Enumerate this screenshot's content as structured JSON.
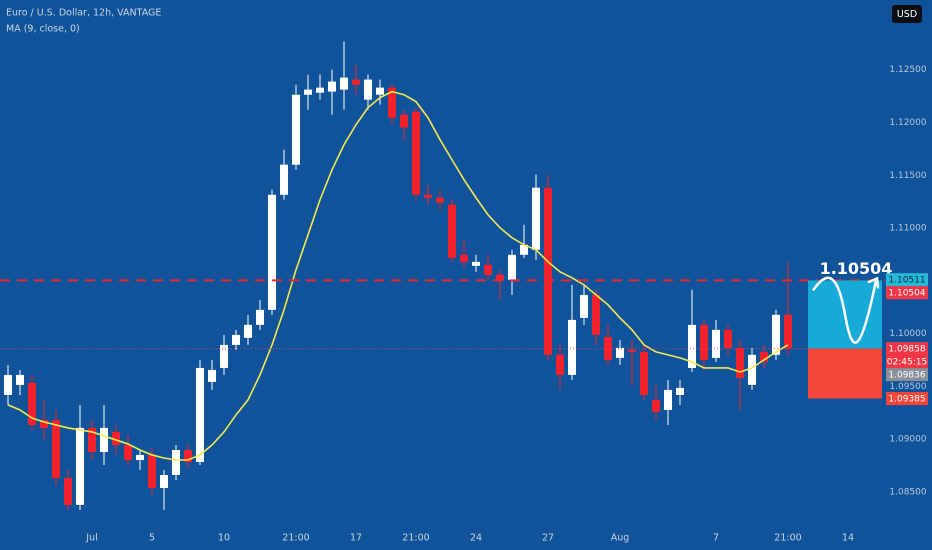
{
  "chart_data": {
    "type": "candlestick",
    "currency": "USD",
    "categories": [
      null,
      null,
      null,
      null,
      null,
      null,
      null,
      "Jul",
      null,
      null,
      null,
      null,
      "5",
      null,
      null,
      null,
      null,
      null,
      "10",
      null,
      null,
      null,
      null,
      null,
      "21:00",
      null,
      null,
      null,
      null,
      "17",
      null,
      null,
      null,
      null,
      "21:00",
      null,
      null,
      null,
      null,
      "24",
      null,
      null,
      null,
      null,
      null,
      "27",
      null,
      null,
      null,
      null,
      null,
      "Aug",
      null,
      null,
      null,
      null,
      null,
      null,
      null,
      "7",
      null,
      null,
      null,
      null,
      null,
      "21:00",
      null,
      null,
      null,
      null,
      "14",
      null,
      null
    ],
    "series": [
      {
        "name": "Euro / U.S. Dollar, 12h, VANTAGE",
        "up_color": "#ffffff",
        "down_color": "#f0222c",
        "open": [
          1.09419,
          1.09514,
          1.09533,
          1.09182,
          1.09182,
          1.08633,
          1.08377,
          1.09107,
          1.08879,
          1.09069,
          1.08945,
          1.08803,
          1.08851,
          1.08538,
          1.08661,
          1.08898,
          1.08784,
          1.09543,
          1.09675,
          1.09893,
          1.0996,
          1.10083,
          1.10225,
          1.11315,
          1.116,
          1.12263,
          1.12282,
          1.12292,
          1.12311,
          1.12406,
          1.12216,
          1.12263,
          1.1233,
          1.12074,
          1.12102,
          1.11315,
          1.11287,
          1.11221,
          1.10747,
          1.10642,
          1.10652,
          1.10557,
          1.1051,
          1.10747,
          1.10794,
          1.11382,
          1.09799,
          1.09609,
          1.10149,
          1.10367,
          1.09969,
          1.0977,
          1.09846,
          1.09827,
          1.09372,
          1.09277,
          1.09419,
          1.09675,
          1.10083,
          1.0977,
          1.10036,
          1.09865,
          1.09514,
          1.09827,
          1.09799,
          1.10178,
          null,
          null,
          null,
          null,
          null,
          null,
          null
        ],
        "high": [
          1.09704,
          1.09656,
          1.09609,
          1.09372,
          1.09277,
          1.08708,
          1.09325,
          1.09182,
          1.09325,
          1.09135,
          1.0904,
          1.08898,
          1.08917,
          1.08708,
          1.08945,
          1.08945,
          1.09751,
          1.09751,
          1.09988,
          1.10036,
          1.10178,
          1.1032,
          1.11363,
          1.11742,
          1.12358,
          1.12453,
          1.12453,
          1.125,
          1.12766,
          1.12548,
          1.12453,
          1.12406,
          1.12358,
          1.12121,
          1.1214,
          1.1141,
          1.11363,
          1.11268,
          1.10889,
          1.10747,
          1.10747,
          1.10604,
          1.10794,
          1.11031,
          1.11505,
          1.11505,
          1.09893,
          1.10462,
          1.10462,
          1.10415,
          1.10083,
          1.09941,
          1.09941,
          1.09893,
          1.09514,
          1.09562,
          1.09562,
          1.10415,
          1.1013,
          1.1013,
          1.10083,
          1.09941,
          1.09865,
          1.09893,
          1.10225,
          1.1068,
          null,
          null,
          null,
          null,
          null,
          null,
          null
        ],
        "low": [
          1.09325,
          1.09419,
          1.09088,
          1.08993,
          1.08566,
          1.08329,
          1.08329,
          1.08803,
          1.08756,
          1.08851,
          1.08756,
          1.08708,
          1.08471,
          1.08329,
          1.08614,
          1.08727,
          1.08756,
          1.09467,
          1.09609,
          1.09846,
          1.09893,
          1.10036,
          1.10178,
          1.11268,
          1.11552,
          1.12121,
          1.12216,
          1.12074,
          1.12121,
          1.12263,
          1.12121,
          1.12169,
          1.11979,
          1.11837,
          1.11268,
          1.11221,
          1.11173,
          1.1068,
          1.10623,
          1.10585,
          1.1051,
          1.1032,
          1.10367,
          1.10718,
          1.10699,
          1.09751,
          1.09467,
          1.09562,
          1.10083,
          1.09893,
          1.09704,
          1.09704,
          1.09514,
          1.09372,
          1.09182,
          1.09135,
          1.09325,
          1.09637,
          1.09656,
          1.09732,
          1.09799,
          1.09277,
          1.09467,
          1.09675,
          1.09751,
          1.09799,
          null,
          null,
          null,
          null,
          null,
          null,
          null
        ],
        "close": [
          1.09609,
          1.09609,
          1.09135,
          1.09107,
          1.08633,
          1.08377,
          1.09107,
          1.08879,
          1.09107,
          1.08945,
          1.08803,
          1.08851,
          1.08538,
          1.08661,
          1.08898,
          1.08784,
          1.09675,
          1.09656,
          1.09893,
          1.09988,
          1.10083,
          1.10225,
          1.11315,
          1.116,
          1.12263,
          1.12311,
          1.1233,
          1.12387,
          1.12425,
          1.12358,
          1.12406,
          1.1233,
          1.12045,
          1.11951,
          1.11315,
          1.11287,
          1.1124,
          1.10718,
          1.1068,
          1.1068,
          1.10557,
          1.1051,
          1.10747,
          1.10841,
          1.11382,
          1.09799,
          1.09609,
          1.1013,
          1.10367,
          1.09988,
          1.09751,
          1.09865,
          1.09827,
          1.09419,
          1.09258,
          1.09467,
          1.09486,
          1.10083,
          1.09751,
          1.10036,
          1.09865,
          1.09581,
          1.09799,
          1.09732,
          1.10178,
          1.09858,
          null,
          null,
          null,
          null,
          null,
          null,
          null
        ]
      },
      {
        "name": "MA (9, close, 0)",
        "color": "#f2ea4f",
        "values": [
          1.09325,
          1.09277,
          1.09201,
          1.09163,
          1.09135,
          1.09107,
          1.09088,
          1.09069,
          1.09031,
          1.08993,
          1.08955,
          1.08898,
          1.08851,
          1.08822,
          1.08803,
          1.08803,
          1.08851,
          1.08945,
          1.09069,
          1.0923,
          1.09372,
          1.09609,
          1.09893,
          1.10225,
          1.10604,
          1.10936,
          1.11268,
          1.11552,
          1.11789,
          1.11979,
          1.1214,
          1.12235,
          1.12292,
          1.12263,
          1.12197,
          1.12045,
          1.11837,
          1.11647,
          1.11458,
          1.11287,
          1.11126,
          1.11003,
          1.10908,
          1.10841,
          1.10794,
          1.1068,
          1.10585,
          1.10529,
          1.10462,
          1.10367,
          1.10273,
          1.10149,
          1.10036,
          1.09893,
          1.09827,
          1.09799,
          1.0977,
          1.09732,
          1.09675,
          1.09675,
          1.09675,
          1.09637,
          1.09675,
          1.09751,
          1.09827,
          1.09893,
          null,
          null,
          null,
          null,
          null,
          null,
          null
        ]
      }
    ],
    "ylim": [
      1.0814,
      1.1316
    ],
    "yticks": [
      {
        "value": 1.085,
        "label": "1.08500"
      },
      {
        "value": 1.09,
        "label": "1.09000"
      },
      {
        "value": 1.095,
        "label": "1.09500"
      },
      {
        "value": 1.1,
        "label": "1.10000"
      },
      {
        "value": 1.11,
        "label": "1.11000"
      },
      {
        "value": 1.115,
        "label": "1.11500"
      },
      {
        "value": 1.12,
        "label": "1.12000"
      },
      {
        "value": 1.125,
        "label": "1.12500"
      }
    ],
    "grid": false,
    "price_labels": [
      {
        "price": 1.10511,
        "color": "#26b8d6"
      },
      {
        "price": 1.10504,
        "color": "#f23645"
      },
      {
        "price": 1.09858,
        "color": "#f23645",
        "countdown": "02:45:15"
      },
      {
        "price": 1.09836,
        "color": "#8a8f98"
      },
      {
        "price": 1.09385,
        "color": "#f4453a"
      }
    ],
    "hline_color": "#e8262e",
    "target_box": {
      "upper_color": "#17aad6",
      "lower_color": "#f4453a"
    }
  }
}
